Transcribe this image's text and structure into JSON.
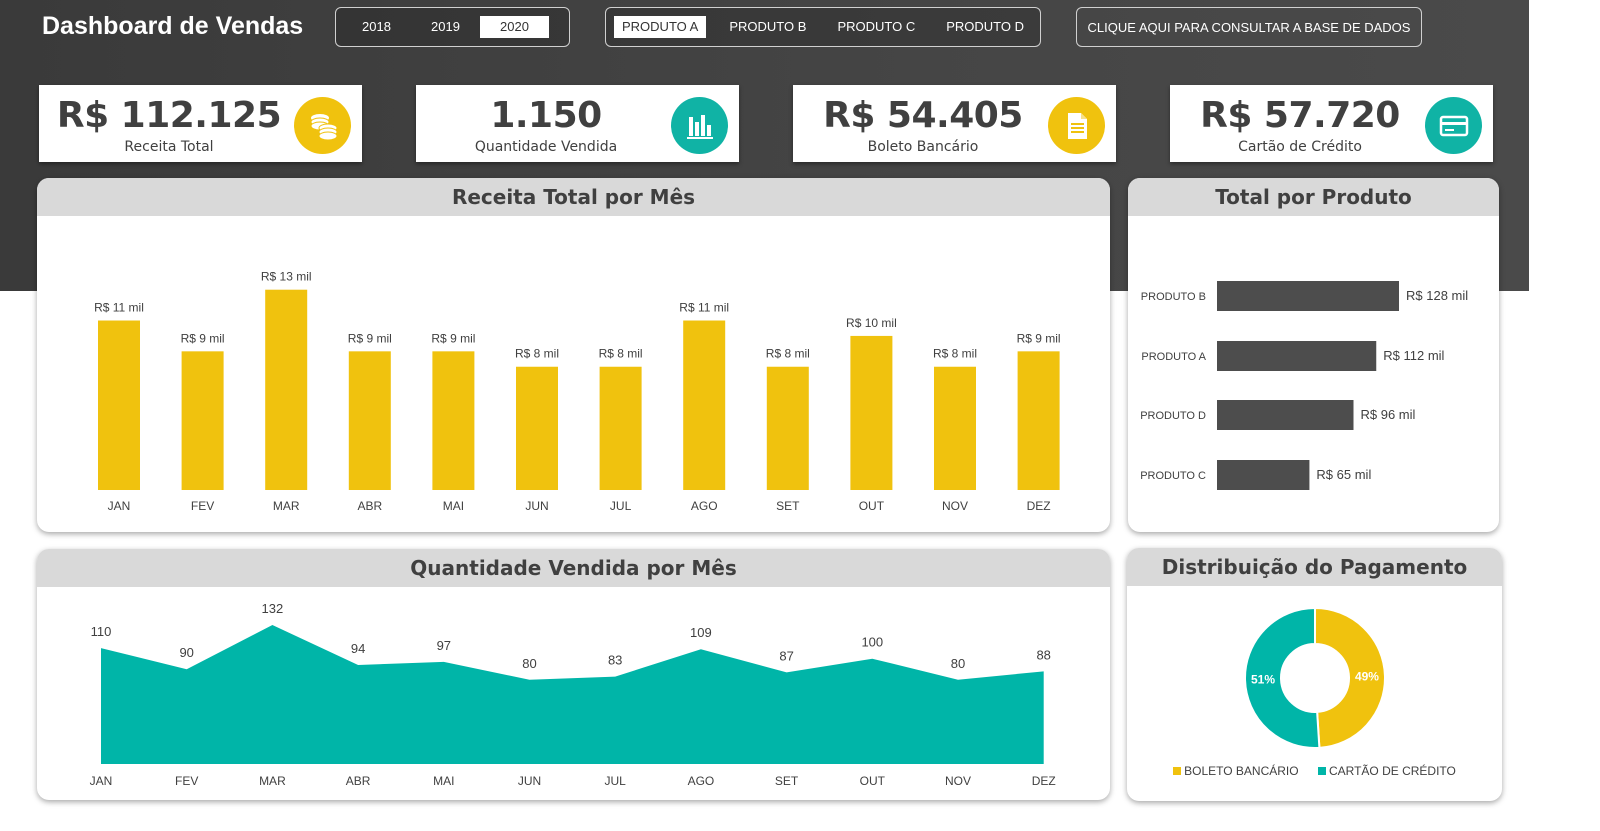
{
  "header": {
    "title": "Dashboard de Vendas",
    "years": [
      "2018",
      "2019",
      "2020"
    ],
    "selected_year": "2020",
    "products": [
      "PRODUTO A",
      "PRODUTO B",
      "PRODUTO C",
      "PRODUTO D"
    ],
    "selected_product": "PRODUTO A",
    "db_button": "CLIQUE AQUI PARA CONSULTAR A BASE DE DADOS"
  },
  "kpis": [
    {
      "value": "R$ 112.125",
      "label": "Receita Total",
      "icon": "coins-icon",
      "color": "#f0c20e"
    },
    {
      "value": "1.150",
      "label": "Quantidade Vendida",
      "icon": "bar-chart-icon",
      "color": "#10b3a5"
    },
    {
      "value": "R$ 54.405",
      "label": "Boleto Bancário",
      "icon": "document-icon",
      "color": "#f0c20e"
    },
    {
      "value": "R$ 57.720",
      "label": "Cartão de Crédito",
      "icon": "credit-card-icon",
      "color": "#10b3a5"
    }
  ],
  "colors": {
    "yellow": "#f0c20e",
    "teal": "#00b5a8",
    "dark_bar": "#4d4d4d",
    "header_bg": "#3f3f3f",
    "card_head": "#d9d9d9"
  },
  "chart_data": [
    {
      "type": "bar",
      "title": "Receita Total por Mês",
      "categories": [
        "JAN",
        "FEV",
        "MAR",
        "ABR",
        "MAI",
        "JUN",
        "JUL",
        "AGO",
        "SET",
        "OUT",
        "NOV",
        "DEZ"
      ],
      "values": [
        11,
        9,
        13,
        9,
        9,
        8,
        8,
        11,
        8,
        10,
        8,
        9
      ],
      "data_labels": [
        "R$ 11 mil",
        "R$ 9 mil",
        "R$ 13 mil",
        "R$ 9 mil",
        "R$ 9 mil",
        "R$ 8 mil",
        "R$ 8 mil",
        "R$ 11 mil",
        "R$ 8 mil",
        "R$ 10 mil",
        "R$ 8 mil",
        "R$ 9 mil"
      ],
      "value_unit": "R$ mil",
      "color": "#f0c20e",
      "grid": false
    },
    {
      "type": "bar",
      "orientation": "horizontal",
      "title": "Total por Produto",
      "categories": [
        "PRODUTO B",
        "PRODUTO A",
        "PRODUTO D",
        "PRODUTO C"
      ],
      "values": [
        128,
        112,
        96,
        65
      ],
      "data_labels": [
        "R$ 128 mil",
        "R$ 112 mil",
        "R$ 96 mil",
        "R$ 65 mil"
      ],
      "value_unit": "R$ mil",
      "color": "#4d4d4d",
      "grid": false
    },
    {
      "type": "area",
      "title": "Quantidade Vendida por Mês",
      "categories": [
        "JAN",
        "FEV",
        "MAR",
        "ABR",
        "MAI",
        "JUN",
        "JUL",
        "AGO",
        "SET",
        "OUT",
        "NOV",
        "DEZ"
      ],
      "values": [
        110,
        90,
        132,
        94,
        97,
        80,
        83,
        109,
        87,
        100,
        80,
        88
      ],
      "color": "#00b5a8",
      "grid": false
    },
    {
      "type": "pie",
      "donut": true,
      "title": "Distribuição do Pagamento",
      "series": [
        {
          "name": "BOLETO BANCÁRIO",
          "value": 49,
          "label": "49%",
          "color": "#f0c20e"
        },
        {
          "name": "CARTÃO DE CRÉDITO",
          "value": 51,
          "label": "51%",
          "color": "#00b5a8"
        }
      ],
      "legend": "bottom"
    }
  ]
}
